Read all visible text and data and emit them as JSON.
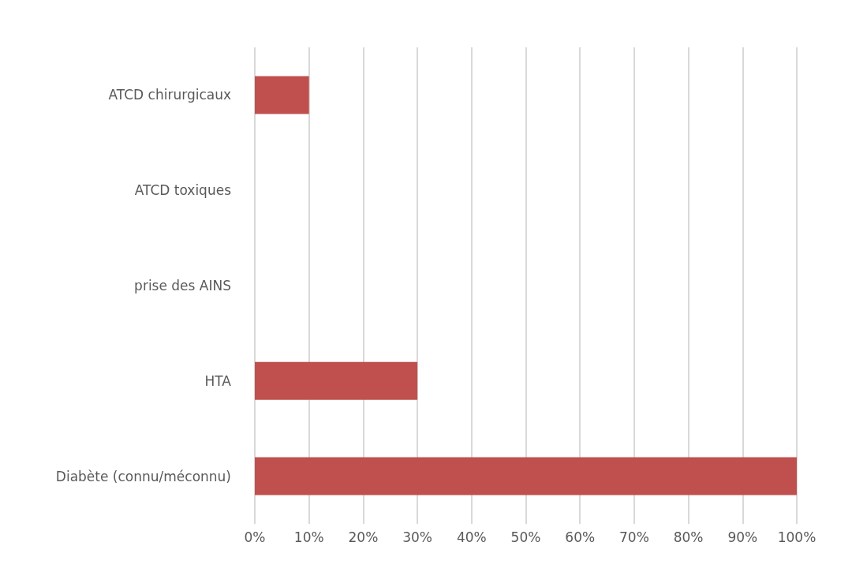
{
  "chart_data": {
    "type": "bar",
    "orientation": "horizontal",
    "categories": [
      "ATCD chirurgicaux",
      "ATCD toxiques",
      "prise des AINS",
      "HTA",
      "Diabète (connu/méconnu)"
    ],
    "values": [
      10,
      0,
      0,
      30,
      100
    ],
    "color": "#c0504d",
    "xlim": [
      0,
      100
    ],
    "xticks": [
      {
        "value": 0,
        "label": "0%"
      },
      {
        "value": 10,
        "label": "10%"
      },
      {
        "value": 20,
        "label": "20%"
      },
      {
        "value": 30,
        "label": "30%"
      },
      {
        "value": 40,
        "label": "40%"
      },
      {
        "value": 50,
        "label": "50%"
      },
      {
        "value": 60,
        "label": "60%"
      },
      {
        "value": 70,
        "label": "70%"
      },
      {
        "value": 80,
        "label": "80%"
      },
      {
        "value": 90,
        "label": "90%"
      },
      {
        "value": 100,
        "label": "100%"
      }
    ],
    "grid": "x"
  }
}
